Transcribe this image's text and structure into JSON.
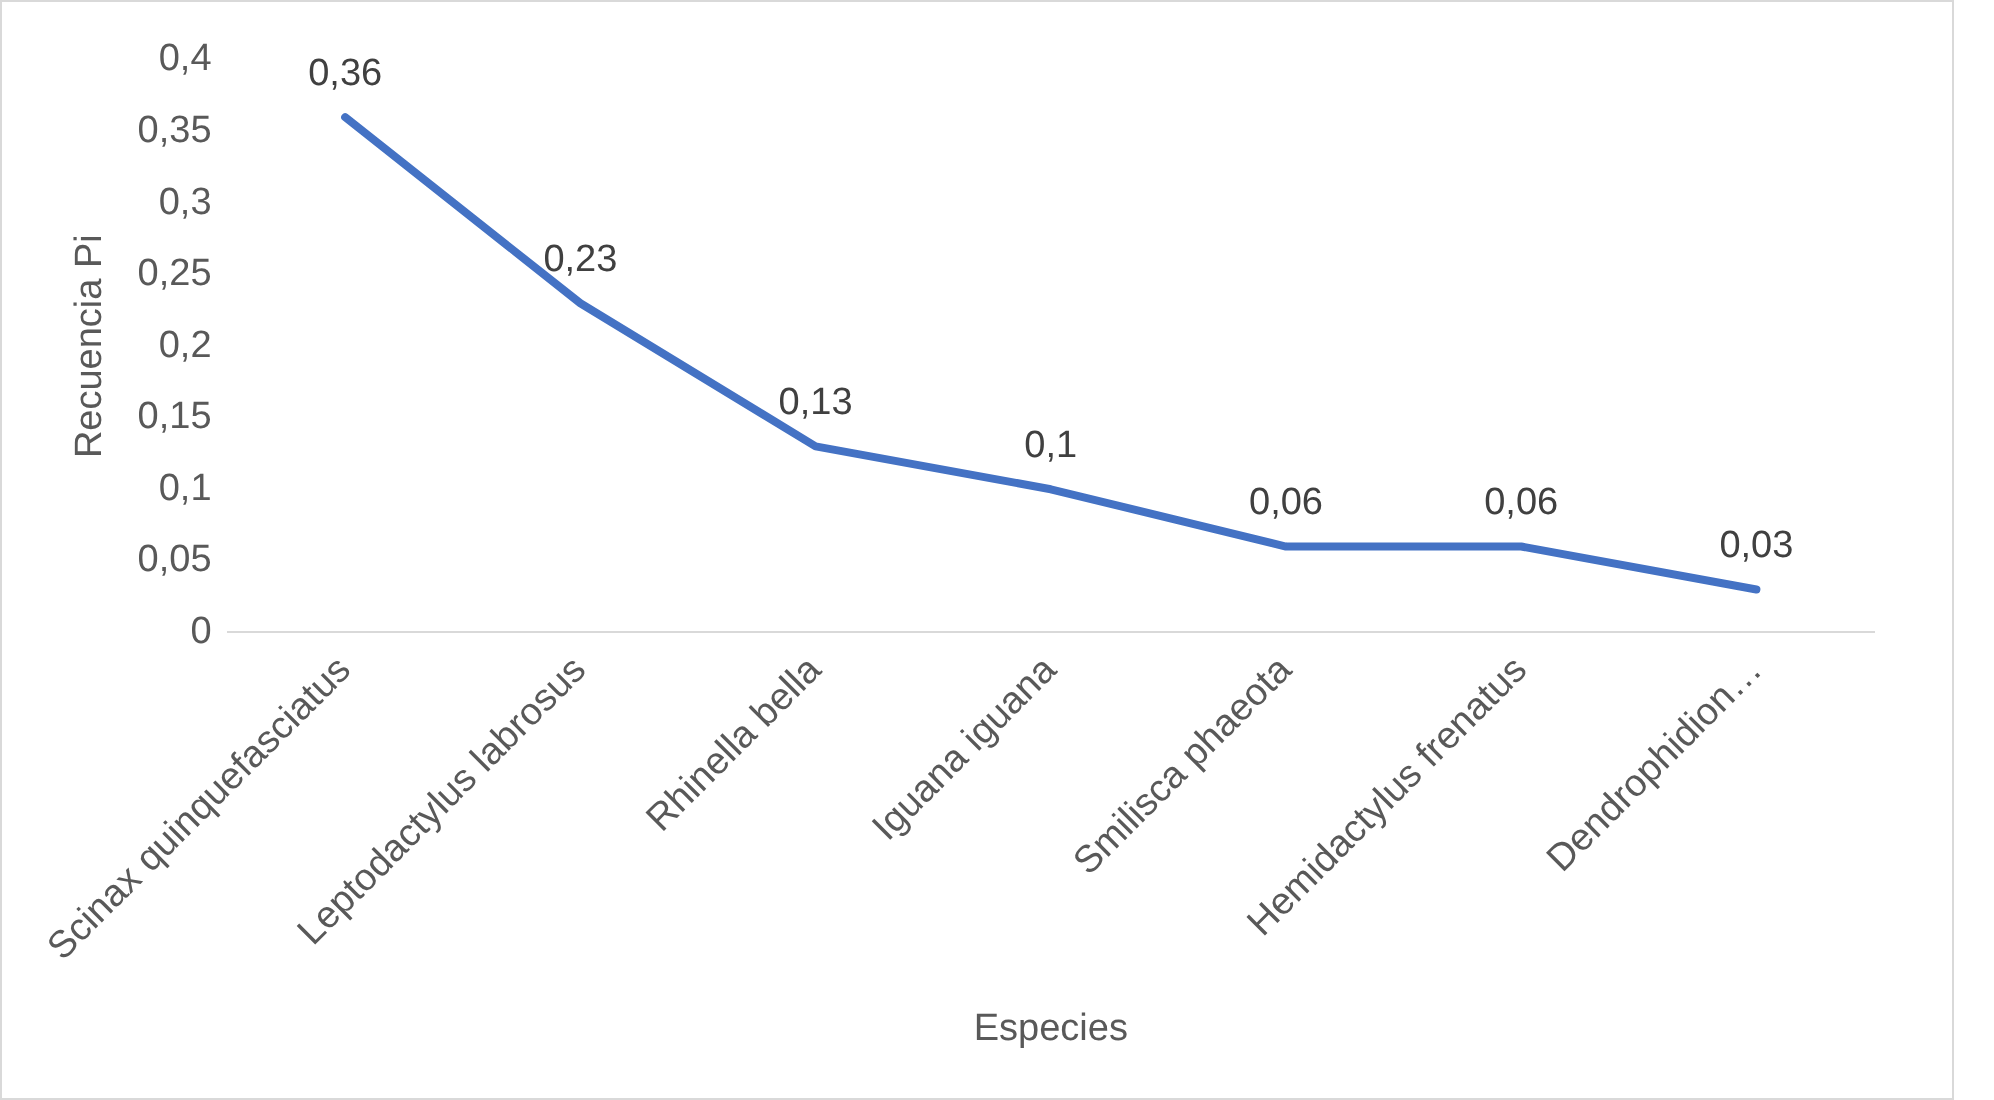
{
  "chart_data": {
    "type": "line",
    "xlabel": "Especies",
    "ylabel": "Recuencia Pi",
    "categories": [
      "Scinax quinquefasciatus",
      "Leptodactylus labrosus",
      "Rhinella bella",
      "Iguana iguana",
      "Smilisca phaeota",
      "Hemidactylus frenatus",
      "Dendrophidion…"
    ],
    "series": [
      {
        "color": "#4472c4",
        "values": [
          0.36,
          0.23,
          0.13,
          0.1,
          0.06,
          0.06,
          0.03
        ],
        "value_labels": [
          "0,36",
          "0,23",
          "0,13",
          "0,1",
          "0,06",
          "0,06",
          "0,03"
        ]
      }
    ],
    "ylim": [
      0,
      0.4
    ],
    "yticks": [
      {
        "value": 0,
        "label": "0"
      },
      {
        "value": 0.05,
        "label": "0,05"
      },
      {
        "value": 0.1,
        "label": "0,1"
      },
      {
        "value": 0.15,
        "label": "0,15"
      },
      {
        "value": 0.2,
        "label": "0,2"
      },
      {
        "value": 0.25,
        "label": "0,25"
      },
      {
        "value": 0.3,
        "label": "0,3"
      },
      {
        "value": 0.35,
        "label": "0,35"
      },
      {
        "value": 0.4,
        "label": "0,4"
      }
    ],
    "grid": false,
    "legend": false,
    "marker": "none",
    "line_style": "solid"
  }
}
